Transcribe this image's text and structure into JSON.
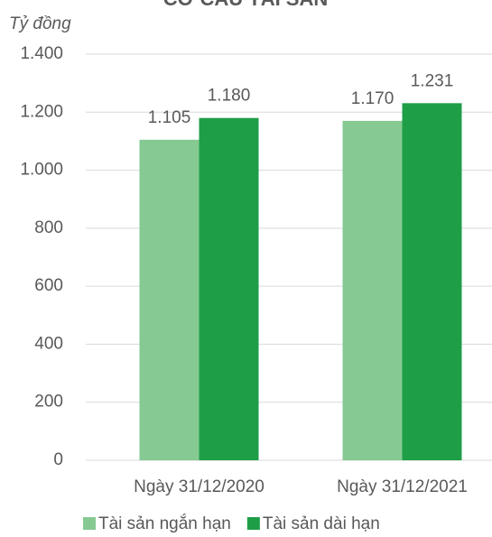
{
  "chart_data": {
    "type": "bar",
    "title": "CƠ CẤU TÀI SẢN",
    "y_axis_label": "Tỷ đồng",
    "categories": [
      "Ngày 31/12/2020",
      "Ngày 31/12/2021"
    ],
    "series": [
      {
        "name": "Tài sản ngắn hạn",
        "color": "#86c993",
        "values": [
          1105,
          1170
        ],
        "value_labels": [
          "1.105",
          "1.170"
        ]
      },
      {
        "name": "Tài sản dài hạn",
        "color": "#1f9e48",
        "values": [
          1180,
          1231
        ],
        "value_labels": [
          "1.180",
          "1.231"
        ]
      }
    ],
    "ylim": [
      0,
      1400
    ],
    "yticks": [
      0,
      200,
      400,
      600,
      800,
      {
        "value": 1000,
        "label": "1.000"
      },
      {
        "value": 1200,
        "label": "1.200"
      },
      {
        "value": 1400,
        "label": "1.400"
      }
    ],
    "grid": true,
    "legend": "bottom"
  }
}
